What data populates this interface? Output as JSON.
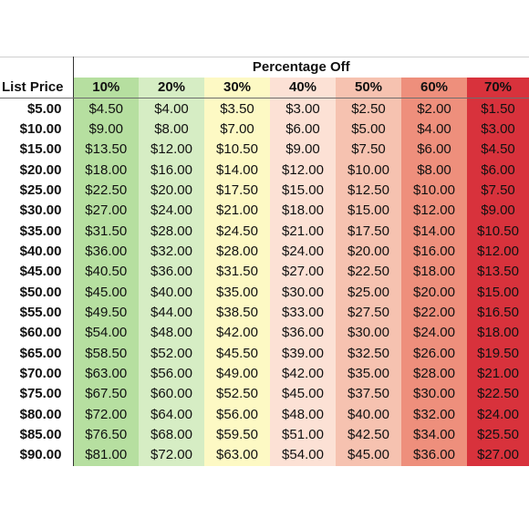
{
  "title": "Percentage Off",
  "row_header": "List Price",
  "columns": [
    {
      "label": "10%",
      "color": "#b6dfa0"
    },
    {
      "label": "20%",
      "color": "#d6edc4"
    },
    {
      "label": "30%",
      "color": "#fdf9c4"
    },
    {
      "label": "40%",
      "color": "#fce1d5"
    },
    {
      "label": "50%",
      "color": "#f6c2b0"
    },
    {
      "label": "60%",
      "color": "#ee8f7c"
    },
    {
      "label": "70%",
      "color": "#d8323c"
    }
  ],
  "rows": [
    {
      "price": "$5.00",
      "values": [
        "$4.50",
        "$4.00",
        "$3.50",
        "$3.00",
        "$2.50",
        "$2.00",
        "$1.50"
      ]
    },
    {
      "price": "$10.00",
      "values": [
        "$9.00",
        "$8.00",
        "$7.00",
        "$6.00",
        "$5.00",
        "$4.00",
        "$3.00"
      ]
    },
    {
      "price": "$15.00",
      "values": [
        "$13.50",
        "$12.00",
        "$10.50",
        "$9.00",
        "$7.50",
        "$6.00",
        "$4.50"
      ]
    },
    {
      "price": "$20.00",
      "values": [
        "$18.00",
        "$16.00",
        "$14.00",
        "$12.00",
        "$10.00",
        "$8.00",
        "$6.00"
      ]
    },
    {
      "price": "$25.00",
      "values": [
        "$22.50",
        "$20.00",
        "$17.50",
        "$15.00",
        "$12.50",
        "$10.00",
        "$7.50"
      ]
    },
    {
      "price": "$30.00",
      "values": [
        "$27.00",
        "$24.00",
        "$21.00",
        "$18.00",
        "$15.00",
        "$12.00",
        "$9.00"
      ]
    },
    {
      "price": "$35.00",
      "values": [
        "$31.50",
        "$28.00",
        "$24.50",
        "$21.00",
        "$17.50",
        "$14.00",
        "$10.50"
      ]
    },
    {
      "price": "$40.00",
      "values": [
        "$36.00",
        "$32.00",
        "$28.00",
        "$24.00",
        "$20.00",
        "$16.00",
        "$12.00"
      ]
    },
    {
      "price": "$45.00",
      "values": [
        "$40.50",
        "$36.00",
        "$31.50",
        "$27.00",
        "$22.50",
        "$18.00",
        "$13.50"
      ]
    },
    {
      "price": "$50.00",
      "values": [
        "$45.00",
        "$40.00",
        "$35.00",
        "$30.00",
        "$25.00",
        "$20.00",
        "$15.00"
      ]
    },
    {
      "price": "$55.00",
      "values": [
        "$49.50",
        "$44.00",
        "$38.50",
        "$33.00",
        "$27.50",
        "$22.00",
        "$16.50"
      ]
    },
    {
      "price": "$60.00",
      "values": [
        "$54.00",
        "$48.00",
        "$42.00",
        "$36.00",
        "$30.00",
        "$24.00",
        "$18.00"
      ]
    },
    {
      "price": "$65.00",
      "values": [
        "$58.50",
        "$52.00",
        "$45.50",
        "$39.00",
        "$32.50",
        "$26.00",
        "$19.50"
      ]
    },
    {
      "price": "$70.00",
      "values": [
        "$63.00",
        "$56.00",
        "$49.00",
        "$42.00",
        "$35.00",
        "$28.00",
        "$21.00"
      ]
    },
    {
      "price": "$75.00",
      "values": [
        "$67.50",
        "$60.00",
        "$52.50",
        "$45.00",
        "$37.50",
        "$30.00",
        "$22.50"
      ]
    },
    {
      "price": "$80.00",
      "values": [
        "$72.00",
        "$64.00",
        "$56.00",
        "$48.00",
        "$40.00",
        "$32.00",
        "$24.00"
      ]
    },
    {
      "price": "$85.00",
      "values": [
        "$76.50",
        "$68.00",
        "$59.50",
        "$51.00",
        "$42.50",
        "$34.00",
        "$25.50"
      ]
    },
    {
      "price": "$90.00",
      "values": [
        "$81.00",
        "$72.00",
        "$63.00",
        "$54.00",
        "$45.00",
        "$36.00",
        "$27.00"
      ]
    }
  ]
}
